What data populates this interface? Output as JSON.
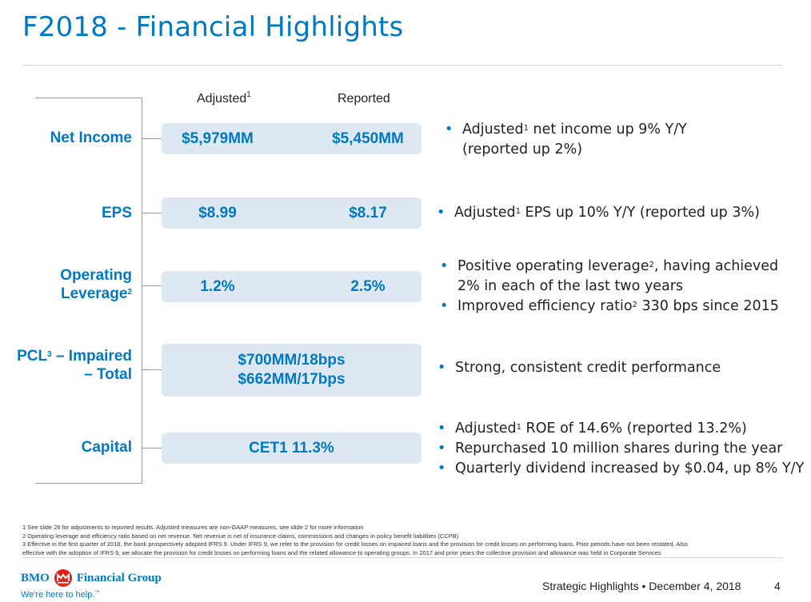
{
  "title": "F2018 - Financial Highlights",
  "columns": {
    "adjusted": "Adjusted",
    "adjusted_sup": "1",
    "reported": "Reported"
  },
  "rows": {
    "net_income": {
      "label": "Net Income",
      "adjusted": "$5,979MM",
      "reported": "$5,450MM"
    },
    "eps": {
      "label": "EPS",
      "adjusted": "$8.99",
      "reported": "$8.17"
    },
    "operating_leverage": {
      "label_line1": "Operating",
      "label_line2": "Leverage",
      "label_sup": "2",
      "adjusted": "1.2%",
      "reported": "2.5%"
    },
    "pcl": {
      "label_line1_pre": "PCL",
      "label_sup": "3",
      "label_line1_post": " – Impaired",
      "label_line2": "– Total",
      "value_line1": "$700MM/18bps",
      "value_line2": "$662MM/17bps"
    },
    "capital": {
      "label": "Capital",
      "value": "CET1 11.3%"
    }
  },
  "bullets": {
    "net_income": [
      {
        "pre": "Adjusted",
        "sup": "1",
        "post": " net income up 9% Y/Y",
        "line2": "(reported up 2%)"
      }
    ],
    "eps": [
      {
        "pre": "Adjusted",
        "sup": "1",
        "post": " EPS up 10% Y/Y (reported up 3%)"
      }
    ],
    "operating_leverage": [
      {
        "pre": "Positive operating leverage",
        "sup": "2",
        "post": ", having achieved",
        "line2": "2% in each of the last two years"
      },
      {
        "pre": "Improved efficiency ratio",
        "sup": "2",
        "post": " 330 bps since 2015"
      }
    ],
    "pcl": [
      {
        "text": "Strong, consistent credit performance"
      }
    ],
    "capital": [
      {
        "pre": "Adjusted",
        "sup": "1",
        "post": " ROE of 14.6% (reported 13.2%)"
      },
      {
        "text": "Repurchased 10 million shares during the year"
      },
      {
        "text": "Quarterly dividend increased by $0.04, up 8% Y/Y"
      }
    ]
  },
  "footnotes": [
    "1  See slide 26 for adjustments to reported results.  Adjusted measures are non-GAAP measures, see slide 2 for more information",
    "2  Operating leverage and efficiency ratio based on net revenue.  Net revenue is net of insurance claims, commissions and changes in policy benefit liabilities (CCPB)",
    "3  Effective in the first quarter of 2018, the bank prospectively adopted IFRS 9. Under IFRS 9, we refer to the provision for credit losses on impaired loans and the provision for credit losses on performing loans.  Prior periods have not been restated.  Also",
    "    effective with the adoption of IFRS 9, we allocate the provision for credit losses on performing loans and the related allowance to operating groups.  In 2017 and prior years the collective provision and allowance was held in Corporate Services"
  ],
  "footer": {
    "logo_text": "BMO",
    "logo_group": "Financial Group",
    "tagline": "We're here to help.",
    "tagline_mark": "™",
    "event": "Strategic Highlights • December 4, 2018",
    "page": "4"
  },
  "colors": {
    "brand_blue": "#0079c1",
    "pill_bg": "#dde8f3",
    "logo_red": "#e2231a"
  },
  "icons": {
    "logo": "bmo-roundel-icon",
    "bullet": "bullet-dot-icon"
  }
}
